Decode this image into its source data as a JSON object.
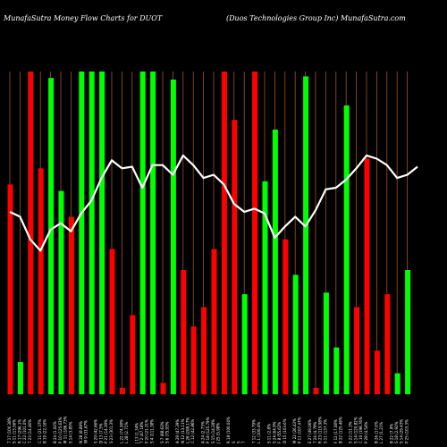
{
  "header": {
    "left_text": "MunafaSutra  Money Flow Charts for DUOT",
    "right_text": "(Duos Technologies Group Inc) MunafaSutra.com"
  },
  "colors": {
    "background": "#000000",
    "up_bar": "#00ff00",
    "down_bar": "#ff0000",
    "grid_line": "#a0522d",
    "money_flow_line": "#ffffff",
    "text": "#ffffff"
  },
  "chart_data": {
    "type": "bar",
    "title": "",
    "xlabel": "",
    "ylabel": "",
    "grid": true,
    "legend": "none",
    "ylim": [
      0,
      100
    ],
    "categories": [
      "1",
      "2",
      "3",
      "4",
      "5",
      "6",
      "7",
      "8",
      "9",
      "10",
      "11",
      "12",
      "13",
      "14",
      "15",
      "16",
      "17",
      "18",
      "19",
      "20",
      "21",
      "22",
      "23",
      "24",
      "25",
      "26",
      "27",
      "28",
      "29",
      "30",
      "31",
      "32",
      "33",
      "34",
      "35",
      "36",
      "37",
      "38",
      "39",
      "40",
      "41",
      "42",
      "43",
      "44",
      "45",
      "46",
      "47",
      "48",
      "49",
      "50",
      "51",
      "52",
      "53",
      "54",
      "55",
      "56",
      "57",
      "58",
      "59",
      "60",
      "61"
    ],
    "x_tick_labels": [
      "T 17 (100.38%",
      "S 11 (13.56%",
      "R 17 (296.1%",
      "C 22 (101.0%",
      "T 23 (14.46%",
      "B 19 (22.16%",
      "C 11 (21.37%",
      "B 24 (1.04%",
      "P 10 (125.63%",
      "M 11 (186.73%",
      "S 14 (3.85%",
      "W 9 (31.67%",
      "N 28 (8.89%",
      "S 29 (42.66%",
      "D 13 (7.5%",
      "P 21 (14.39%",
      "S 23 (301.3%",
      "L 28 (2.71%",
      "L 22 (74.38%",
      "J 13 (1.34%",
      "T 2 (47.18%",
      "P 20 (21.31%",
      "S 4 (111.38%",
      "S 6 (75.93%",
      "S 7 (88.63%",
      "A 29 (47.39%",
      "N 12 (13.11%",
      "L 26 (208.17%",
      "C 12 (42.86%",
      "P 18 (125.79%",
      "A 24 (2.73%",
      "J 25 (5.98%",
      "S 15 (14.28%",
      "R 18 (100.04%",
      "S",
      "S",
      "T",
      "L 1 (100.4%",
      "T 12 (33.79%",
      "S 11 (2.8%",
      "S 24 (64.9%",
      "F 8 (55.62%",
      "D 15 (103.6%",
      "P 11 (107.47%",
      "M 22 (26.43%",
      "E 27 (49.06%",
      "T 24 (4.79%",
      "R 23 (119.98%",
      "S 11 (137.3%",
      "B 22 (125.46%",
      "F 12 (17.08%",
      "S 22 (11.3%",
      "S 14 (120.82%",
      "C 10 (198.76%",
      "P 28 (4.54%",
      "L 27 (1.21%",
      "B 26 (17.6%",
      "B 22 (7.9%",
      "S 18 (2.92%",
      "S 14 (29.43%",
      "P 25 (103.3%"
    ],
    "series": [
      {
        "values": [
          65.0,
          10.0,
          100.0,
          70.0,
          0.0,
          0.0,
          0.0,
          98.0,
          63.0,
          55.0,
          0.0,
          0.0,
          0.0,
          100.0,
          0.0,
          100.0,
          0.0,
          0.0,
          0.0,
          0.0,
          45.0,
          2.0,
          0.0,
          24.5,
          0.0,
          100.0,
          0.0,
          100.0,
          0.0,
          3.5,
          0.0,
          0.0,
          0.0,
          97.5,
          0.0,
          0.0,
          0.0,
          38.5,
          0.0,
          0.0,
          0.0,
          0.0,
          0.0,
          0.0,
          0.0,
          0.0,
          0.0,
          40.0,
          0.0,
          0.0,
          0.0,
          88.5,
          0.0,
          2.0,
          0.0,
          0.0,
          30.5,
          0.0,
          4.0,
          70.0,
          0.0
        ]
      }
    ],
    "bars": [
      {
        "color": "down",
        "value": 65.0
      },
      {
        "color": "up",
        "value": 10.0
      },
      {
        "color": "down",
        "value": 100.0
      },
      {
        "color": "down",
        "value": 70.0
      },
      {
        "color": "up",
        "value": 98.0
      },
      {
        "color": "up",
        "value": 63.0
      },
      {
        "color": "down",
        "value": 55.0
      },
      {
        "color": "up",
        "value": 100.0
      },
      {
        "color": "up",
        "value": 100.0
      },
      {
        "color": "up",
        "value": 100.0
      },
      {
        "color": "down",
        "value": 45.0
      },
      {
        "color": "down",
        "value": 2.0
      },
      {
        "color": "down",
        "value": 24.5
      },
      {
        "color": "up",
        "value": 100.0
      },
      {
        "color": "up",
        "value": 100.0
      },
      {
        "color": "down",
        "value": 3.5
      },
      {
        "color": "up",
        "value": 97.5
      },
      {
        "color": "down",
        "value": 38.5
      },
      {
        "color": "down",
        "value": 21.0
      },
      {
        "color": "down",
        "value": 27.0
      },
      {
        "color": "down",
        "value": 45.0
      },
      {
        "color": "down",
        "value": 100.0
      },
      {
        "color": "down",
        "value": 85.0
      },
      {
        "color": "up",
        "value": 31.0
      },
      {
        "color": "down",
        "value": 100.0
      },
      {
        "color": "up",
        "value": 66.0
      },
      {
        "color": "up",
        "value": 82.0
      },
      {
        "color": "down",
        "value": 48.0
      },
      {
        "color": "up",
        "value": 37.0
      },
      {
        "color": "up",
        "value": 98.5
      },
      {
        "color": "down",
        "value": 2.0
      },
      {
        "color": "up",
        "value": 31.5
      },
      {
        "color": "up",
        "value": 14.5
      },
      {
        "color": "up",
        "value": 89.5
      },
      {
        "color": "down",
        "value": 27.0
      },
      {
        "color": "down",
        "value": 73.0
      },
      {
        "color": "down",
        "value": 13.5
      },
      {
        "color": "down",
        "value": 31.0
      },
      {
        "color": "up",
        "value": 6.5
      },
      {
        "color": "up",
        "value": 38.5
      }
    ],
    "bar_slots": [
      3,
      6,
      9,
      12,
      15,
      18,
      21,
      24,
      27,
      30,
      33,
      36,
      39,
      42,
      45,
      48,
      51,
      54,
      57,
      60,
      63,
      66,
      69,
      72,
      75,
      78,
      81,
      84,
      87,
      90,
      93,
      96,
      99,
      102,
      105,
      108,
      111,
      114,
      117,
      120
    ],
    "money_flow_line": [
      56.5,
      55.0,
      48.0,
      44.5,
      51.0,
      53.0,
      50.5,
      56.0,
      60.0,
      67.0,
      72.5,
      70.0,
      70.5,
      64.0,
      71.0,
      71.0,
      68.0,
      74.0,
      71.0,
      67.0,
      68.0,
      65.0,
      59.0,
      56.5,
      57.5,
      56.0,
      48.5,
      52.0,
      55.0,
      52.0,
      57.0,
      63.5,
      64.0,
      66.5,
      70.0,
      74.0,
      73.0,
      71.0,
      67.0,
      68.0,
      70.5
    ]
  }
}
